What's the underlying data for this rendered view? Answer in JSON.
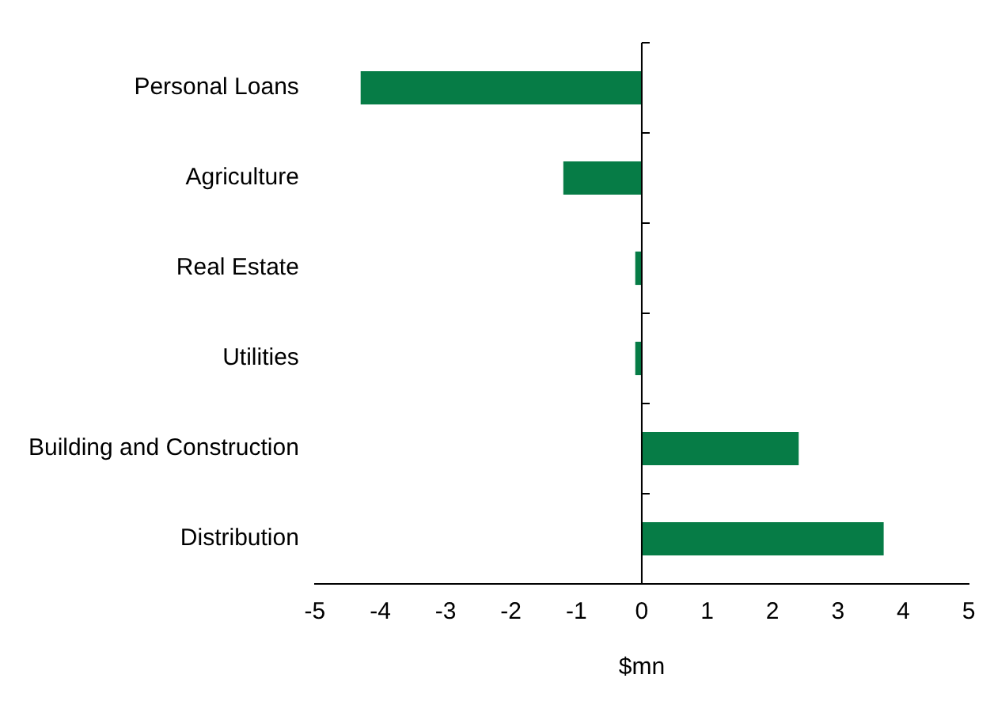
{
  "chart_data": {
    "type": "bar",
    "orientation": "horizontal",
    "xlabel": "$mn",
    "categories": [
      "Personal Loans",
      "Agriculture",
      "Real Estate",
      "Utilities",
      "Building and Construction",
      "Distribution"
    ],
    "values": [
      -4.3,
      -1.2,
      -0.1,
      -0.1,
      2.4,
      3.7
    ],
    "color": "#067c46",
    "xlim": [
      -5,
      5
    ],
    "xticks": [
      -5,
      -4,
      -3,
      -2,
      -1,
      0,
      1,
      2,
      3,
      4,
      5
    ],
    "legend": false
  }
}
